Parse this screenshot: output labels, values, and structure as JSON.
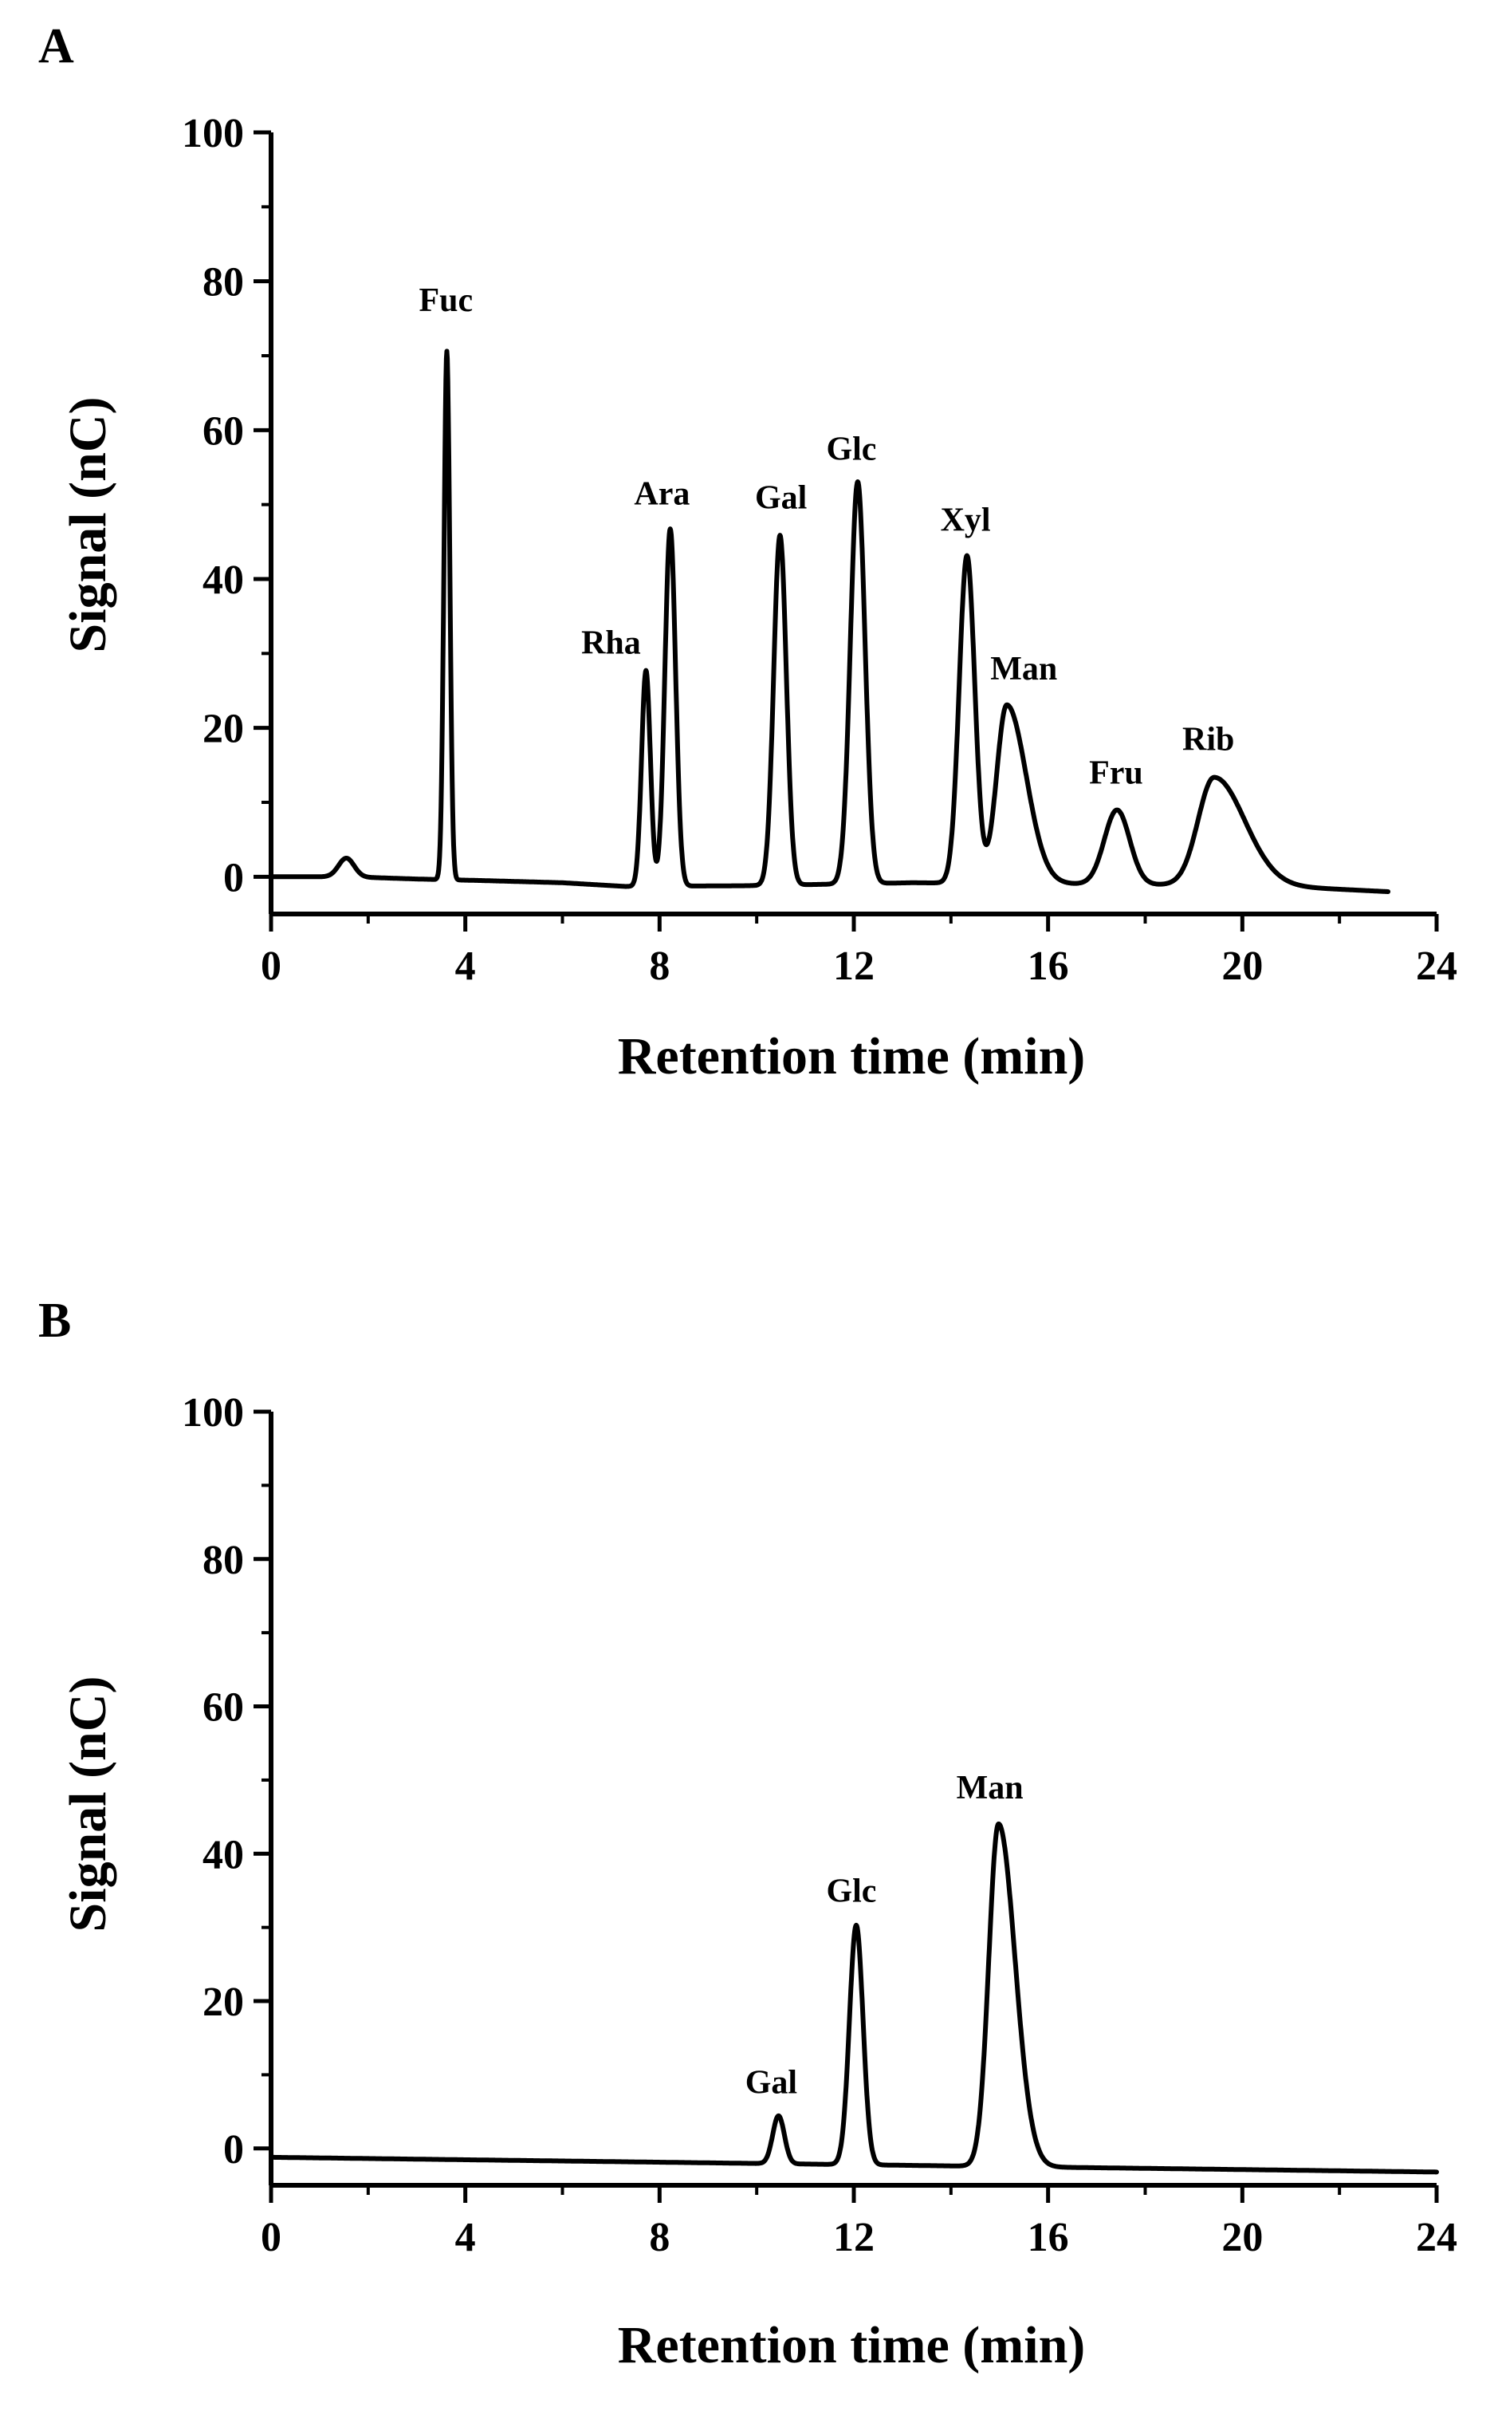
{
  "chart_data": [
    {
      "type": "line",
      "panel_label": "A",
      "xlabel": "Retention time (min)",
      "ylabel": "Signal (nC)",
      "xlim": [
        0,
        24
      ],
      "ylim": [
        -5,
        100
      ],
      "xticks": [
        0,
        4,
        8,
        12,
        16,
        20,
        24
      ],
      "yticks": [
        0,
        20,
        40,
        60,
        80,
        100
      ],
      "grid": false,
      "baseline": [
        [
          0,
          0
        ],
        [
          1.0,
          0
        ],
        [
          1.6,
          0
        ],
        [
          3.0,
          -0.3
        ],
        [
          4.3,
          -0.5
        ],
        [
          6,
          -0.8
        ],
        [
          7.3,
          -1.3
        ],
        [
          9.8,
          -1.2
        ],
        [
          13.2,
          -0.8
        ],
        [
          17.0,
          -1.0
        ],
        [
          20.5,
          -1.2
        ],
        [
          23,
          -2.0
        ]
      ],
      "peaks": [
        {
          "label": "",
          "rt": 1.55,
          "height": 2.5,
          "sigma": 0.16
        },
        {
          "label": "Fuc",
          "rt": 3.62,
          "height": 71,
          "sigma": 0.06
        },
        {
          "label": "Rha",
          "rt": 7.72,
          "height": 29,
          "sigma": 0.09
        },
        {
          "label": "Ara",
          "rt": 8.22,
          "height": 48,
          "sigma": 0.11
        },
        {
          "label": "Gal",
          "rt": 10.48,
          "height": 47,
          "sigma": 0.13
        },
        {
          "label": "Glc",
          "rt": 12.08,
          "height": 54,
          "sigma": 0.15
        },
        {
          "label": "Xyl",
          "rt": 14.33,
          "height": 44,
          "sigma": 0.16
        },
        {
          "label": "Man",
          "rt": 15.15,
          "height": 24,
          "sigma": 0.21,
          "tail": 1.9
        },
        {
          "label": "Fru",
          "rt": 17.42,
          "height": 10,
          "sigma": 0.26
        },
        {
          "label": "Rib",
          "rt": 19.42,
          "height": 14.5,
          "sigma": 0.33,
          "tail": 1.9
        }
      ],
      "peak_labels": [
        {
          "text": "Fuc",
          "x": 3.6,
          "y": 76
        },
        {
          "text": "Rha",
          "x": 7.0,
          "y": 30
        },
        {
          "text": "Ara",
          "x": 8.05,
          "y": 50
        },
        {
          "text": "Gal",
          "x": 10.5,
          "y": 49.5
        },
        {
          "text": "Glc",
          "x": 11.95,
          "y": 56
        },
        {
          "text": "Xyl",
          "x": 14.3,
          "y": 46.5
        },
        {
          "text": "Man",
          "x": 15.5,
          "y": 26.5
        },
        {
          "text": "Fru",
          "x": 17.4,
          "y": 12.5
        },
        {
          "text": "Rib",
          "x": 19.3,
          "y": 17
        }
      ]
    },
    {
      "type": "line",
      "panel_label": "B",
      "xlabel": "Retention time (min)",
      "ylabel": "Signal (nC)",
      "xlim": [
        0,
        24
      ],
      "ylim": [
        -5,
        100
      ],
      "xticks": [
        0,
        4,
        8,
        12,
        16,
        20,
        24
      ],
      "yticks": [
        0,
        20,
        40,
        60,
        80,
        100
      ],
      "grid": false,
      "baseline": [
        [
          0,
          -1.2
        ],
        [
          24,
          -3.2
        ]
      ],
      "peaks": [
        {
          "label": "Gal",
          "rt": 10.45,
          "height": 6.5,
          "sigma": 0.12
        },
        {
          "label": "Glc",
          "rt": 12.05,
          "height": 32.5,
          "sigma": 0.14
        },
        {
          "label": "Man",
          "rt": 14.98,
          "height": 46.5,
          "sigma": 0.2,
          "tail": 1.7
        }
      ],
      "peak_labels": [
        {
          "text": "Gal",
          "x": 10.3,
          "y": 7.5
        },
        {
          "text": "Glc",
          "x": 11.95,
          "y": 33.5
        },
        {
          "text": "Man",
          "x": 14.8,
          "y": 47.5
        }
      ]
    }
  ]
}
